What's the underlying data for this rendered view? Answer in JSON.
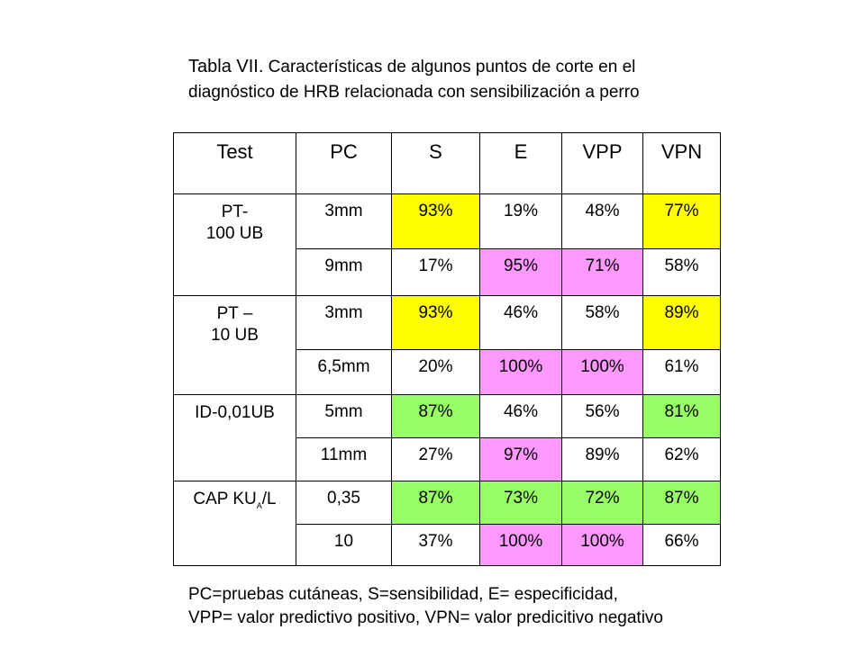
{
  "title": {
    "label": "Tabla VII.",
    "line1": "Características de algunos puntos de corte en el",
    "line2": "diagnóstico de HRB relacionada con sensibilización a perro"
  },
  "table": {
    "headers": [
      "Test",
      "PC",
      "S",
      "E",
      "VPP",
      "VPN"
    ],
    "groups": [
      {
        "test_line1": "PT-",
        "test_line2": "100 UB",
        "rows": [
          {
            "pc": "3mm",
            "s": "93%",
            "e": "19%",
            "vpp": "48%",
            "vpn": "77%"
          },
          {
            "pc": "9mm",
            "s": "17%",
            "e": "95%",
            "vpp": "71%",
            "vpn": "58%"
          }
        ]
      },
      {
        "test_line1": "PT –",
        "test_line2": "10 UB",
        "rows": [
          {
            "pc": "3mm",
            "s": "93%",
            "e": "46%",
            "vpp": "58%",
            "vpn": "89%"
          },
          {
            "pc": "6,5mm",
            "s": "20%",
            "e": "100%",
            "vpp": "100%",
            "vpn": "61%"
          }
        ]
      },
      {
        "test_line1": "ID-0,01UB",
        "rows": [
          {
            "pc": "5mm",
            "s": "87%",
            "e": "46%",
            "vpp": "56%",
            "vpn": "81%"
          },
          {
            "pc": "11mm",
            "s": "27%",
            "e": "97%",
            "vpp": "89%",
            "vpn": "62%"
          }
        ]
      },
      {
        "test_main": "CAP KU",
        "test_sub": "A",
        "test_tail": "/L",
        "rows": [
          {
            "pc": "0,35",
            "s": "87%",
            "e": "73%",
            "vpp": "72%",
            "vpn": "87%"
          },
          {
            "pc": "10",
            "s": "37%",
            "e": "100%",
            "vpp": "100%",
            "vpn": "66%"
          }
        ]
      }
    ],
    "highlight_colors": {
      "yellow": "#ffff00",
      "pink": "#ff99ff",
      "green": "#99ff66"
    }
  },
  "footnote": {
    "line1": "PC=pruebas cutáneas, S=sensibilidad, E= especificidad,",
    "line2": "VPP= valor predictivo positivo, VPN= valor predicitivo negativo"
  }
}
